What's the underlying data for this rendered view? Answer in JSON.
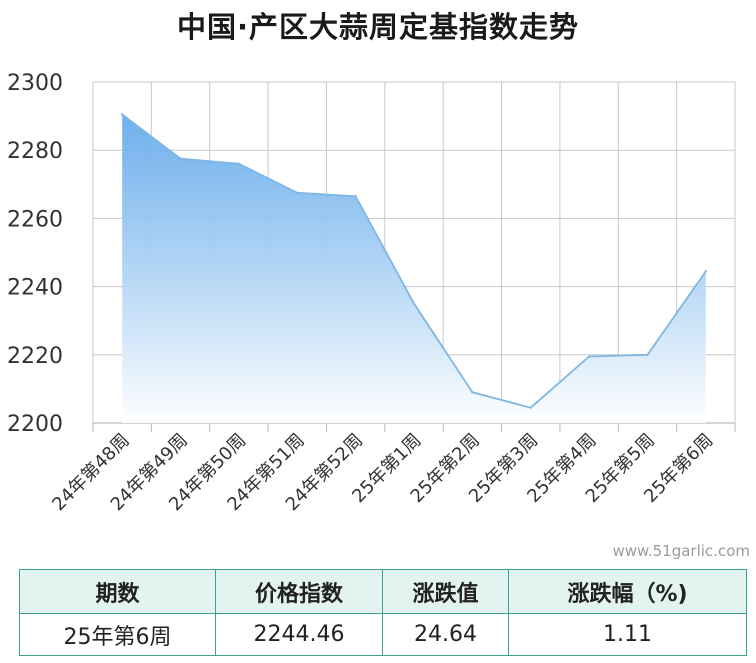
{
  "chart_data": {
    "type": "area",
    "title": "中国·产区大蒜周定基指数走势",
    "categories": [
      "24年第48周",
      "24年第49周",
      "24年第50周",
      "24年第51周",
      "24年第52周",
      "25年第1周",
      "25年第2周",
      "25年第3周",
      "25年第4周",
      "25年第5周",
      "25年第6周"
    ],
    "values": [
      2290.5,
      2277.5,
      2276.0,
      2267.5,
      2266.5,
      2235.0,
      2209.0,
      2204.5,
      2219.5,
      2220.0,
      2244.5
    ],
    "ylim": [
      2200,
      2300
    ],
    "yticks": [
      2200,
      2220,
      2240,
      2260,
      2280,
      2300
    ],
    "grid": true,
    "colors": {
      "line": "#7fb6e3",
      "fill_top": "#5fa7ea",
      "fill_bottom": "#ffffff"
    }
  },
  "watermark": "www.51garlic.com",
  "table": {
    "headers": [
      "期数",
      "价格指数",
      "涨跌值",
      "涨跌幅（%)"
    ],
    "row": [
      "25年第6周",
      "2244.46",
      "24.64",
      "1.11"
    ],
    "colors": {
      "border": "#3aa38f",
      "header_bg": "#e3f4f0"
    }
  }
}
